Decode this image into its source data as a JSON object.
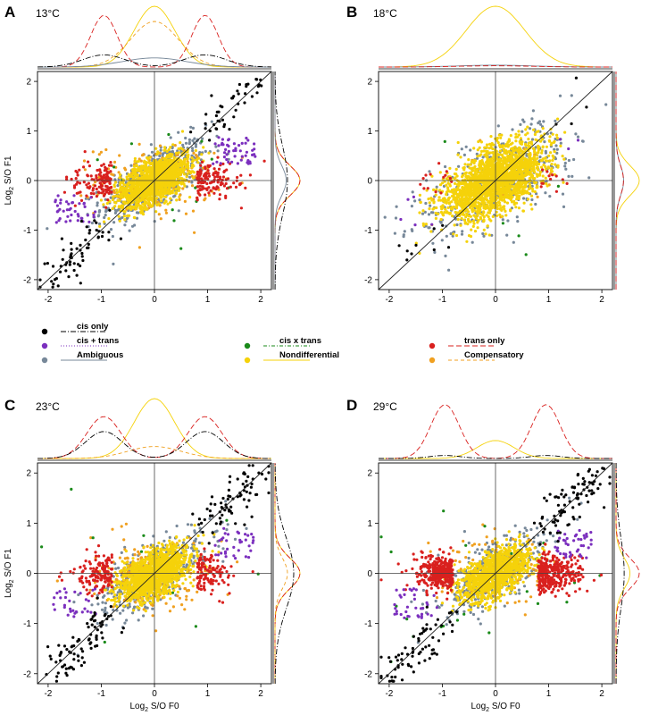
{
  "figure_axes": {
    "xlabel_main": "Log",
    "xlabel_sub": "2",
    "xlabel_rest": " S/O F0",
    "ylabel_main": "Log",
    "ylabel_sub": "2",
    "ylabel_rest": " S/O F1"
  },
  "categories": [
    {
      "key": "cis_only",
      "label": "cis only",
      "color": "#000000",
      "dash": "6,2,1,2"
    },
    {
      "key": "cis_plus_trans",
      "label": "cis + trans",
      "color": "#7b2fbe",
      "dash": "1,2"
    },
    {
      "key": "ambiguous",
      "label": "Ambiguous",
      "color": "#778899",
      "dash": ""
    },
    {
      "key": "cis_x_trans",
      "label": "cis x trans",
      "color": "#1a8a1a",
      "dash": "4,2,1,2"
    },
    {
      "key": "nondifferential",
      "label": "Nondifferential",
      "color": "#f5d20a",
      "dash": ""
    },
    {
      "key": "trans_only",
      "label": "trans only",
      "color": "#d9201e",
      "dash": "6,3"
    },
    {
      "key": "compensatory",
      "label": "Compensatory",
      "color": "#f0a020",
      "dash": "4,3"
    }
  ],
  "chart_data": [
    {
      "panel": "A",
      "temperature": "13°C",
      "type": "scatter",
      "xlim": [
        -2.2,
        2.2
      ],
      "ylim": [
        -2.2,
        2.2
      ],
      "xticks": [
        -2,
        -1,
        0,
        1,
        2
      ],
      "yticks": [
        -2,
        -1,
        0,
        1,
        2
      ],
      "show_xlabel": false,
      "show_ylabel": true,
      "category_proportions": {
        "nondifferential": 0.55,
        "ambiguous": 0.2,
        "trans_only": 0.1,
        "compensatory": 0.07,
        "cis_only": 0.04,
        "cis_plus_trans": 0.035,
        "cis_x_trans": 0.005
      }
    },
    {
      "panel": "B",
      "temperature": "18°C",
      "type": "scatter",
      "xlim": [
        -2.2,
        2.2
      ],
      "ylim": [
        -2.2,
        2.2
      ],
      "xticks": [
        -2,
        -1,
        0,
        1,
        2
      ],
      "yticks": [
        -2,
        -1,
        0,
        1,
        2
      ],
      "show_xlabel": false,
      "show_ylabel": false,
      "category_proportions": {
        "nondifferential": 0.8,
        "ambiguous": 0.17,
        "trans_only": 0.01,
        "compensatory": 0.01,
        "cis_only": 0.005,
        "cis_plus_trans": 0.003,
        "cis_x_trans": 0.002
      }
    },
    {
      "panel": "C",
      "temperature": "23°C",
      "type": "scatter",
      "xlim": [
        -2.2,
        2.2
      ],
      "ylim": [
        -2.2,
        2.2
      ],
      "xticks": [
        -2,
        -1,
        0,
        1,
        2
      ],
      "yticks": [
        -2,
        -1,
        0,
        1,
        2
      ],
      "show_xlabel": true,
      "show_ylabel": true,
      "category_proportions": {
        "nondifferential": 0.55,
        "ambiguous": 0.18,
        "trans_only": 0.1,
        "compensatory": 0.08,
        "cis_only": 0.06,
        "cis_plus_trans": 0.025,
        "cis_x_trans": 0.005
      }
    },
    {
      "panel": "D",
      "temperature": "29°C",
      "type": "scatter",
      "xlim": [
        -2.2,
        2.2
      ],
      "ylim": [
        -2.2,
        2.2
      ],
      "xticks": [
        -2,
        -1,
        0,
        1,
        2
      ],
      "yticks": [
        -2,
        -1,
        0,
        1,
        2
      ],
      "show_xlabel": true,
      "show_ylabel": false,
      "category_proportions": {
        "nondifferential": 0.45,
        "ambiguous": 0.16,
        "trans_only": 0.25,
        "compensatory": 0.04,
        "cis_only": 0.06,
        "cis_plus_trans": 0.03,
        "cis_x_trans": 0.01
      }
    }
  ]
}
